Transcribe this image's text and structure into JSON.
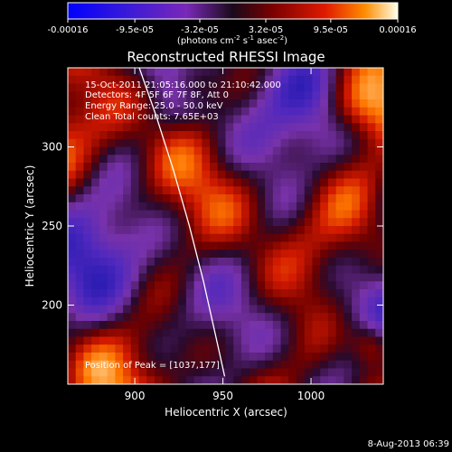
{
  "chart_data": {
    "type": "heatmap",
    "title": "Reconstructed RHESSI Image",
    "xlabel": "Heliocentric X (arcsec)",
    "ylabel": "Heliocentric Y (arcsec)",
    "xlim": [
      862,
      1041
    ],
    "ylim": [
      150,
      350
    ],
    "x_ticks": [
      900,
      950,
      1000
    ],
    "y_ticks": [
      200,
      250,
      300
    ],
    "colorbar": {
      "range": [
        -0.00016,
        0.00016
      ],
      "tick_values": [
        -0.00016,
        -9.5e-05,
        -3.2e-05,
        3.2e-05,
        9.5e-05,
        0.00016
      ],
      "tick_labels": [
        "-0.00016",
        "-9.5e-05",
        "-3.2e-05",
        "3.2e-05",
        "9.5e-05",
        "0.00016"
      ],
      "unit_main": "(photons cm",
      "unit_sup1": "-2",
      "unit_mid": " s",
      "unit_sup2": "-1",
      "unit_mid2": " asec",
      "unit_sup3": "-2",
      "unit_end": ")"
    },
    "annotations": {
      "time_range": "15-Oct-2011 21:05:16.000 to 21:10:42.000",
      "detectors": "Detectors: 4F 5F 6F 7F 8F, Att 0",
      "energy": "Energy Range: 25.0 - 50.0 keV",
      "clean": "Clean     Total counts: 7.65E+03",
      "peak": "Position of Peak = [1037,177]"
    },
    "limb_curve": [
      [
        901,
        355
      ],
      [
        912,
        320
      ],
      [
        922,
        285
      ],
      [
        931,
        250
      ],
      [
        939,
        215
      ],
      [
        946,
        180
      ],
      [
        951,
        155
      ]
    ],
    "peak_position": [
      1037,
      177
    ],
    "grid": false
  },
  "footer": {
    "date": "8-Aug-2013 06:39"
  }
}
